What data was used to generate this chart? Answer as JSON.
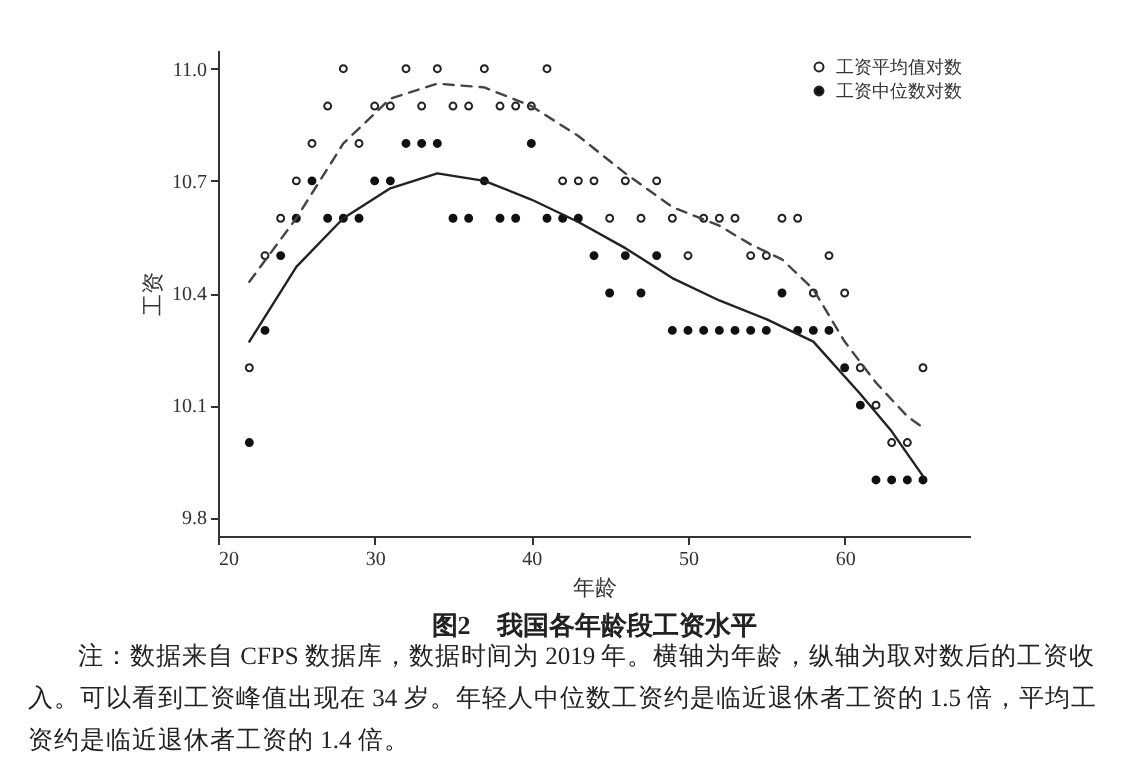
{
  "chart_data": {
    "type": "scatter",
    "title": "图2　我国各年龄段工资水平",
    "xlabel": "年龄",
    "ylabel": "工资",
    "annotations": [
      "注：数据来自 CFPS 数据库，数据时间为 2019 年。横轴为年龄，纵轴为取对数后的工资收入。可以看到工资峰值出现在 34 岁。年轻人中位数工资约是临近退休者工资的 1.5 倍，平均工资约是临近退休者工资的 1.4 倍。"
    ],
    "x": [
      22,
      23,
      24,
      25,
      26,
      27,
      28,
      29,
      30,
      31,
      32,
      33,
      34,
      35,
      36,
      37,
      38,
      39,
      40,
      41,
      42,
      43,
      44,
      45,
      46,
      47,
      48,
      49,
      50,
      51,
      52,
      53,
      54,
      55,
      56,
      57,
      58,
      59,
      60,
      61,
      62,
      63,
      64,
      65
    ],
    "series": [
      {
        "name": "工资平均值对数",
        "color": "#222222",
        "marker": "circle",
        "values": [
          10.2,
          10.5,
          10.6,
          10.7,
          10.8,
          10.9,
          11.0,
          10.8,
          10.9,
          10.9,
          11.0,
          10.9,
          11.0,
          10.9,
          10.9,
          11.0,
          10.9,
          10.9,
          10.9,
          11.0,
          10.7,
          10.7,
          10.7,
          10.6,
          10.7,
          10.6,
          10.7,
          10.6,
          10.5,
          10.6,
          10.6,
          10.6,
          10.5,
          10.5,
          10.6,
          10.6,
          10.4,
          10.5,
          10.4,
          10.2,
          10.1,
          10.0,
          10.0,
          10.2
        ]
      },
      {
        "name": "工资中位数对数",
        "color": "#111111",
        "marker": "circle",
        "values": [
          10.0,
          10.3,
          10.5,
          10.6,
          10.7,
          10.6,
          10.6,
          10.6,
          10.7,
          10.7,
          10.8,
          10.8,
          10.8,
          10.6,
          10.6,
          10.7,
          10.6,
          10.6,
          10.8,
          10.6,
          10.6,
          10.6,
          10.5,
          10.4,
          10.5,
          10.4,
          10.5,
          10.3,
          10.3,
          10.3,
          10.3,
          10.3,
          10.3,
          10.3,
          10.4,
          10.3,
          10.3,
          10.3,
          10.2,
          10.1,
          9.9,
          9.9,
          9.9,
          9.9
        ]
      },
      {
        "type": "line",
        "line_style": "dashed",
        "color": "#444444",
        "x": [
          22,
          25,
          28,
          31,
          34,
          37,
          40,
          43,
          46,
          49,
          52,
          54,
          56,
          58,
          60,
          62,
          64,
          65
        ],
        "values": [
          10.43,
          10.6,
          10.8,
          10.92,
          10.96,
          10.95,
          10.9,
          10.82,
          10.72,
          10.63,
          10.58,
          10.53,
          10.49,
          10.41,
          10.27,
          10.16,
          10.07,
          10.04
        ]
      },
      {
        "type": "line",
        "line_style": "solid",
        "color": "#222222",
        "x": [
          22,
          25,
          28,
          31,
          34,
          37,
          40,
          43,
          46,
          49,
          52,
          55,
          58,
          61,
          63,
          65
        ],
        "values": [
          10.27,
          10.47,
          10.6,
          10.68,
          10.72,
          10.7,
          10.65,
          10.59,
          10.52,
          10.44,
          10.38,
          10.33,
          10.27,
          10.13,
          10.03,
          9.91
        ]
      }
    ],
    "xlim": [
      20,
      68
    ],
    "xticks": [
      20,
      30,
      40,
      50,
      60
    ],
    "ylim": [
      9.75,
      11.05
    ],
    "yticks": [
      9.8,
      10.1,
      10.4,
      10.7,
      {
        "value": 11.0,
        "label": "11.0"
      }
    ],
    "legend": "top right",
    "grid": false
  }
}
